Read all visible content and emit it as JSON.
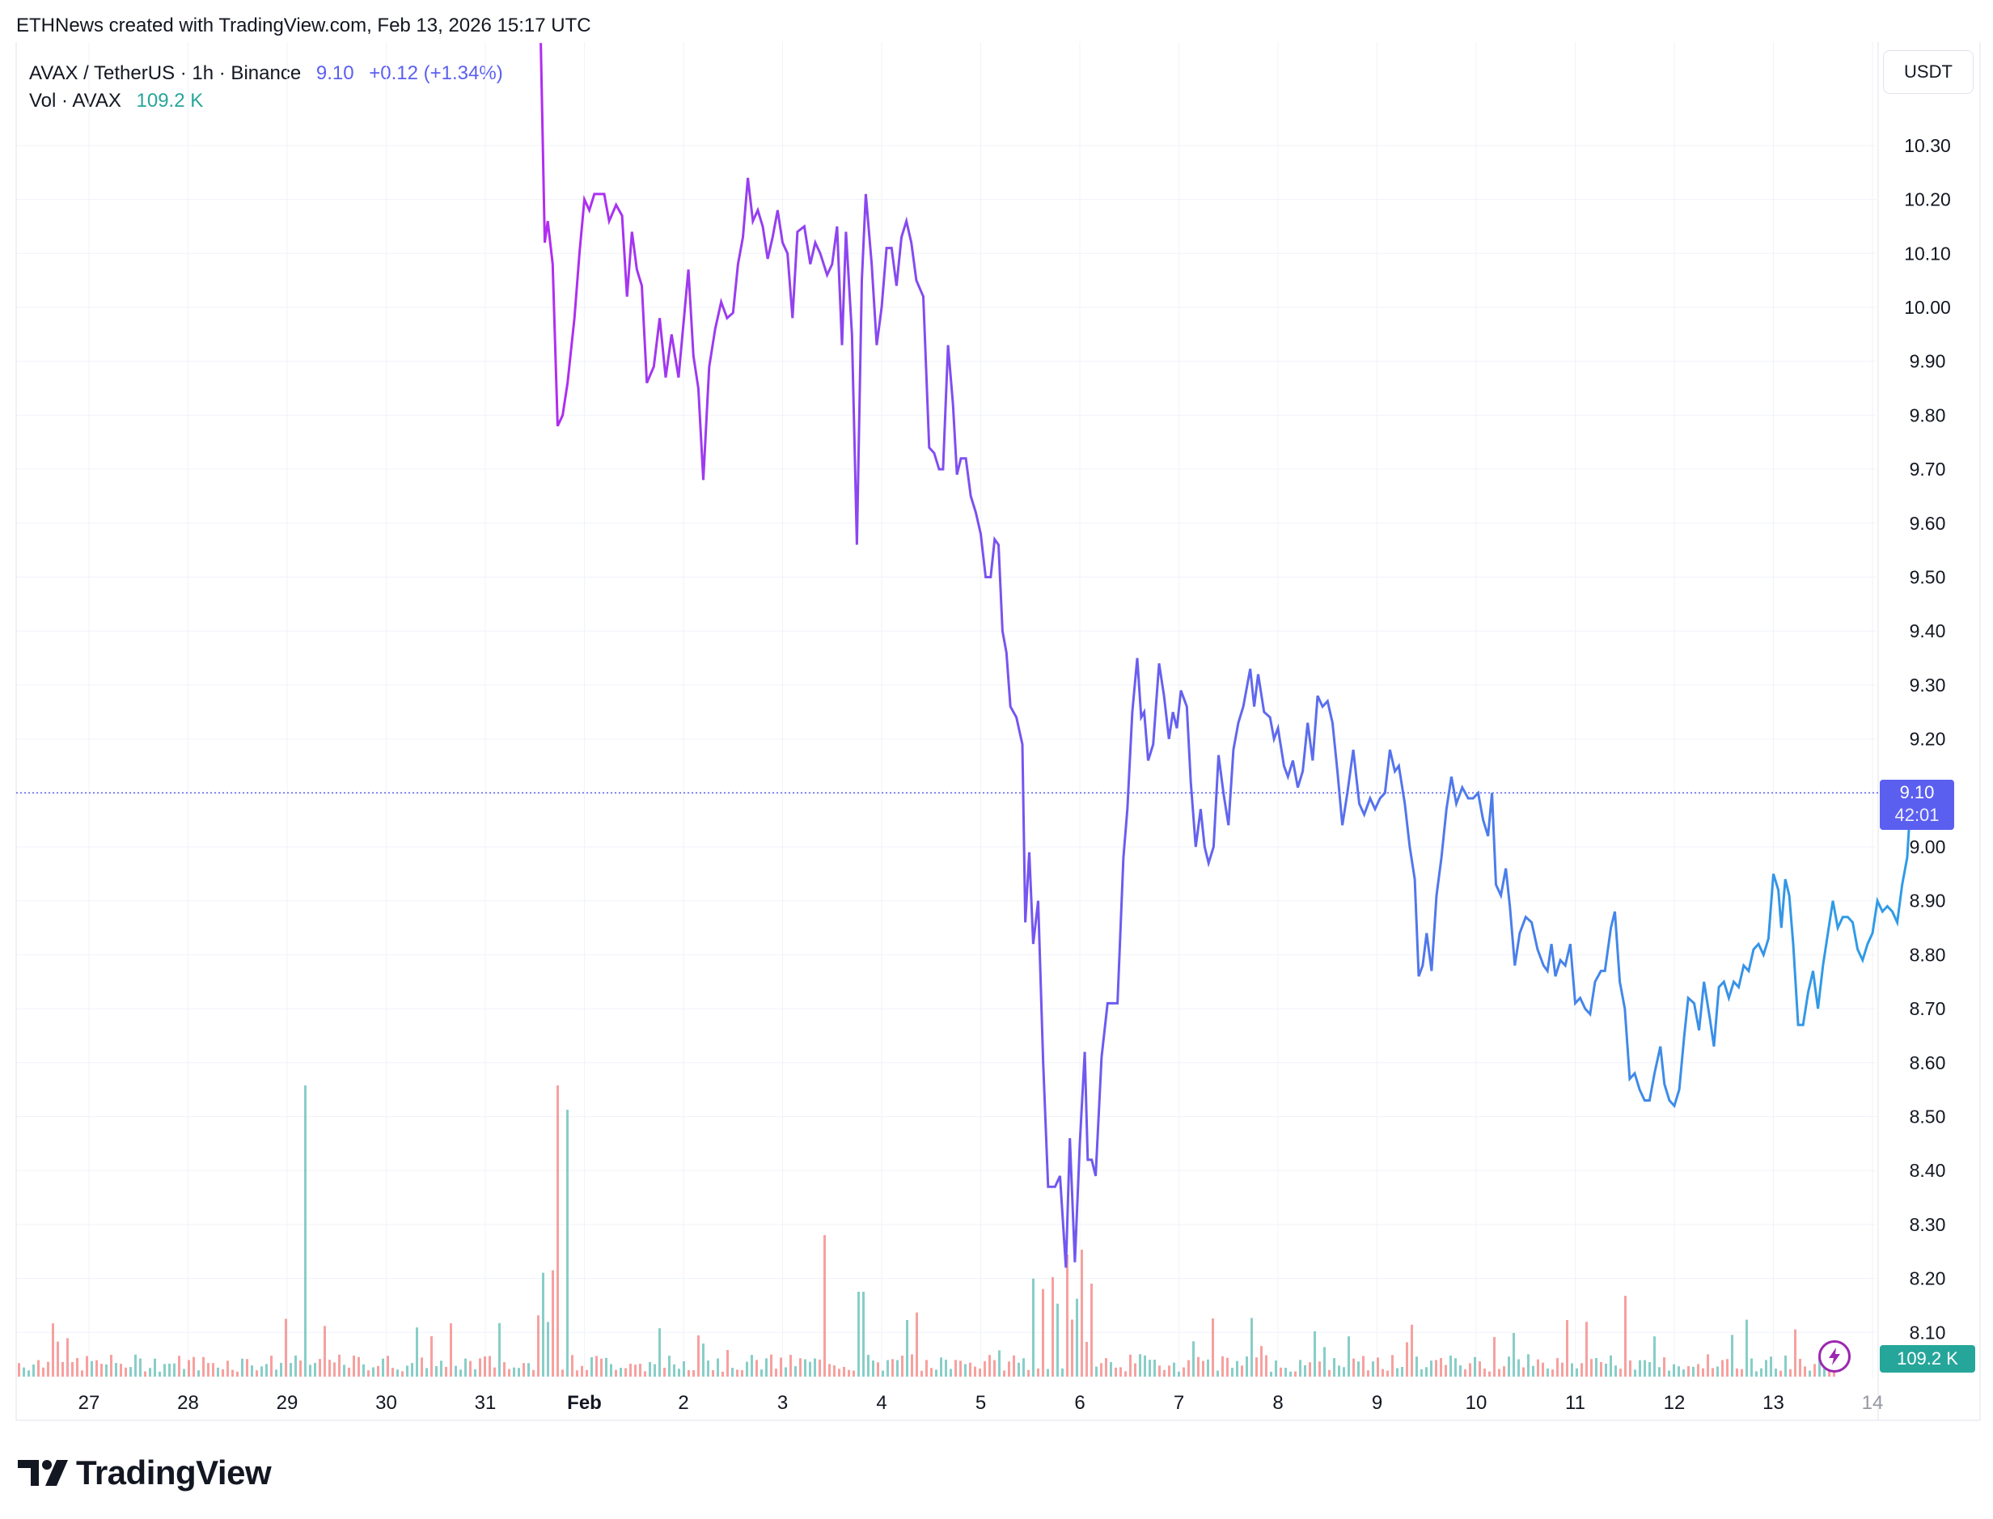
{
  "header": {
    "credit": "ETHNews created with TradingView.com, Feb 13, 2026 15:17 UTC"
  },
  "legend": {
    "symbol": "AVAX / TetherUS · 1h · Binance",
    "last": "9.10",
    "change": "+0.12 (+1.34%)",
    "volume_label": "Vol · AVAX",
    "volume_value": "109.2 K"
  },
  "currency_button": "USDT",
  "price_tag": {
    "price": "9.10",
    "countdown": "42:01"
  },
  "volume_tag": "109.2 K",
  "brand": {
    "name": "TradingView",
    "logo_icon": "tradingview-logo-icon"
  },
  "colors": {
    "line_start": "#b22cf0",
    "line_mid": "#6b5cf0",
    "line_end": "#2f9be6",
    "last_price": "#5b5ff0",
    "volume_up": "#26a69a",
    "volume_down": "#ef5350",
    "grid": "#f0f3fa"
  },
  "chart_data": {
    "type": "line",
    "y_ticks": [
      "10.30",
      "10.20",
      "10.10",
      "10.00",
      "9.90",
      "9.80",
      "9.70",
      "9.60",
      "9.50",
      "9.40",
      "9.30",
      "9.20",
      "9.10",
      "9.00",
      "8.90",
      "8.80",
      "8.70",
      "8.60",
      "8.50",
      "8.40",
      "8.30",
      "8.20",
      "8.10"
    ],
    "x_ticks": [
      "27",
      "28",
      "29",
      "30",
      "31",
      "Feb",
      "2",
      "3",
      "4",
      "5",
      "6",
      "7",
      "8",
      "9",
      "10",
      "11",
      "12",
      "13",
      "14"
    ],
    "ylim": [
      8.06,
      10.49
    ],
    "grid": true,
    "series": [
      {
        "values": [
          [
            31.56,
            10.49
          ],
          [
            31.6,
            10.12
          ],
          [
            31.63,
            10.16
          ],
          [
            31.68,
            10.08
          ],
          [
            31.73,
            9.78
          ],
          [
            31.78,
            9.8
          ],
          [
            31.83,
            9.86
          ],
          [
            31.9,
            9.98
          ],
          [
            31.95,
            10.1
          ],
          [
            32.0,
            10.2
          ],
          [
            32.05,
            10.18
          ],
          [
            32.1,
            10.21
          ],
          [
            32.2,
            10.21
          ],
          [
            32.25,
            10.16
          ],
          [
            32.32,
            10.19
          ],
          [
            32.38,
            10.17
          ],
          [
            32.43,
            10.02
          ],
          [
            32.48,
            10.14
          ],
          [
            32.53,
            10.07
          ],
          [
            32.58,
            10.04
          ],
          [
            32.63,
            9.86
          ],
          [
            32.7,
            9.89
          ],
          [
            32.76,
            9.98
          ],
          [
            32.82,
            9.87
          ],
          [
            32.88,
            9.95
          ],
          [
            32.95,
            9.87
          ],
          [
            33.0,
            9.97
          ],
          [
            33.05,
            10.07
          ],
          [
            33.1,
            9.91
          ],
          [
            33.15,
            9.85
          ],
          [
            33.2,
            9.68
          ],
          [
            33.26,
            9.89
          ],
          [
            33.32,
            9.96
          ],
          [
            33.38,
            10.01
          ],
          [
            33.44,
            9.98
          ],
          [
            33.5,
            9.99
          ],
          [
            33.55,
            10.08
          ],
          [
            33.6,
            10.13
          ],
          [
            33.65,
            10.24
          ],
          [
            33.7,
            10.16
          ],
          [
            33.75,
            10.18
          ],
          [
            33.8,
            10.15
          ],
          [
            33.85,
            10.09
          ],
          [
            33.9,
            10.13
          ],
          [
            33.95,
            10.18
          ],
          [
            34.0,
            10.12
          ],
          [
            34.05,
            10.1
          ],
          [
            34.1,
            9.98
          ],
          [
            34.15,
            10.14
          ],
          [
            34.22,
            10.15
          ],
          [
            34.28,
            10.08
          ],
          [
            34.33,
            10.12
          ],
          [
            34.38,
            10.1
          ],
          [
            34.45,
            10.06
          ],
          [
            34.5,
            10.08
          ],
          [
            34.55,
            10.15
          ],
          [
            34.6,
            9.93
          ],
          [
            34.64,
            10.14
          ],
          [
            34.7,
            9.95
          ],
          [
            34.75,
            9.56
          ],
          [
            34.8,
            10.05
          ],
          [
            34.84,
            10.21
          ],
          [
            34.9,
            10.08
          ],
          [
            34.95,
            9.93
          ],
          [
            35.0,
            10.0
          ],
          [
            35.05,
            10.11
          ],
          [
            35.1,
            10.11
          ],
          [
            35.15,
            10.04
          ],
          [
            35.2,
            10.13
          ],
          [
            35.25,
            10.16
          ],
          [
            35.3,
            10.12
          ],
          [
            35.35,
            10.05
          ],
          [
            35.42,
            10.02
          ],
          [
            35.48,
            9.74
          ],
          [
            35.53,
            9.73
          ],
          [
            35.58,
            9.7
          ],
          [
            35.62,
            9.7
          ],
          [
            35.67,
            9.93
          ],
          [
            35.72,
            9.82
          ],
          [
            35.76,
            9.69
          ],
          [
            35.8,
            9.72
          ],
          [
            35.85,
            9.72
          ],
          [
            35.9,
            9.65
          ],
          [
            35.95,
            9.62
          ],
          [
            36.0,
            9.58
          ],
          [
            36.05,
            9.5
          ],
          [
            36.1,
            9.5
          ],
          [
            36.14,
            9.57
          ],
          [
            36.18,
            9.56
          ],
          [
            36.22,
            9.4
          ],
          [
            36.26,
            9.36
          ],
          [
            36.3,
            9.26
          ],
          [
            36.36,
            9.24
          ],
          [
            36.42,
            9.19
          ],
          [
            36.45,
            8.86
          ],
          [
            36.49,
            8.99
          ],
          [
            36.53,
            8.82
          ],
          [
            36.58,
            8.9
          ],
          [
            36.63,
            8.6
          ],
          [
            36.68,
            8.37
          ],
          [
            36.75,
            8.37
          ],
          [
            36.8,
            8.39
          ],
          [
            36.86,
            8.22
          ],
          [
            36.9,
            8.46
          ],
          [
            36.95,
            8.23
          ],
          [
            37.0,
            8.45
          ],
          [
            37.05,
            8.62
          ],
          [
            37.08,
            8.42
          ],
          [
            37.12,
            8.42
          ],
          [
            37.16,
            8.39
          ],
          [
            37.22,
            8.61
          ],
          [
            37.28,
            8.71
          ],
          [
            37.32,
            8.71
          ],
          [
            37.38,
            8.71
          ],
          [
            37.44,
            8.98
          ],
          [
            37.48,
            9.07
          ],
          [
            37.53,
            9.25
          ],
          [
            37.58,
            9.35
          ],
          [
            37.62,
            9.24
          ],
          [
            37.65,
            9.25
          ],
          [
            37.69,
            9.16
          ],
          [
            37.74,
            9.19
          ],
          [
            37.8,
            9.34
          ],
          [
            37.85,
            9.28
          ],
          [
            37.9,
            9.2
          ],
          [
            37.94,
            9.25
          ],
          [
            37.98,
            9.22
          ],
          [
            38.02,
            9.29
          ],
          [
            38.08,
            9.26
          ],
          [
            38.12,
            9.12
          ],
          [
            38.17,
            9.0
          ],
          [
            38.22,
            9.07
          ],
          [
            38.26,
            9.0
          ],
          [
            38.3,
            8.97
          ],
          [
            38.35,
            9.0
          ],
          [
            38.4,
            9.17
          ],
          [
            38.45,
            9.1
          ],
          [
            38.5,
            9.04
          ],
          [
            38.55,
            9.18
          ],
          [
            38.6,
            9.23
          ],
          [
            38.65,
            9.26
          ],
          [
            38.72,
            9.33
          ],
          [
            38.76,
            9.26
          ],
          [
            38.8,
            9.32
          ],
          [
            38.86,
            9.25
          ],
          [
            38.92,
            9.24
          ],
          [
            38.96,
            9.2
          ],
          [
            39.0,
            9.22
          ],
          [
            39.06,
            9.15
          ],
          [
            39.1,
            9.13
          ],
          [
            39.15,
            9.16
          ],
          [
            39.2,
            9.11
          ],
          [
            39.25,
            9.14
          ],
          [
            39.3,
            9.23
          ],
          [
            39.35,
            9.16
          ],
          [
            39.4,
            9.28
          ],
          [
            39.45,
            9.26
          ],
          [
            39.5,
            9.27
          ],
          [
            39.55,
            9.23
          ],
          [
            39.6,
            9.14
          ],
          [
            39.65,
            9.04
          ],
          [
            39.7,
            9.1
          ],
          [
            39.76,
            9.18
          ],
          [
            39.82,
            9.08
          ],
          [
            39.87,
            9.06
          ],
          [
            39.93,
            9.09
          ],
          [
            39.98,
            9.07
          ],
          [
            40.03,
            9.09
          ],
          [
            40.08,
            9.1
          ],
          [
            40.13,
            9.18
          ],
          [
            40.18,
            9.14
          ],
          [
            40.22,
            9.15
          ],
          [
            40.28,
            9.08
          ],
          [
            40.33,
            9.0
          ],
          [
            40.38,
            8.94
          ],
          [
            40.42,
            8.76
          ],
          [
            40.46,
            8.78
          ],
          [
            40.5,
            8.84
          ],
          [
            40.55,
            8.77
          ],
          [
            40.6,
            8.91
          ],
          [
            40.65,
            8.98
          ],
          [
            40.7,
            9.07
          ],
          [
            40.75,
            9.13
          ],
          [
            40.8,
            9.08
          ],
          [
            40.86,
            9.11
          ],
          [
            40.92,
            9.09
          ],
          [
            40.97,
            9.09
          ],
          [
            41.02,
            9.1
          ],
          [
            41.07,
            9.05
          ],
          [
            41.12,
            9.02
          ],
          [
            41.16,
            9.1
          ],
          [
            41.2,
            8.93
          ],
          [
            41.25,
            8.91
          ],
          [
            41.3,
            8.96
          ],
          [
            41.34,
            8.89
          ],
          [
            41.39,
            8.78
          ],
          [
            41.44,
            8.84
          ],
          [
            41.5,
            8.87
          ],
          [
            41.56,
            8.86
          ],
          [
            41.62,
            8.81
          ],
          [
            41.68,
            8.78
          ],
          [
            41.72,
            8.77
          ],
          [
            41.76,
            8.82
          ],
          [
            41.8,
            8.76
          ],
          [
            41.85,
            8.79
          ],
          [
            41.9,
            8.78
          ],
          [
            41.95,
            8.82
          ],
          [
            42.0,
            8.71
          ],
          [
            42.05,
            8.72
          ],
          [
            42.1,
            8.7
          ],
          [
            42.15,
            8.69
          ],
          [
            42.2,
            8.75
          ],
          [
            42.26,
            8.77
          ],
          [
            42.3,
            8.77
          ],
          [
            42.36,
            8.85
          ],
          [
            42.4,
            8.88
          ],
          [
            42.45,
            8.75
          ],
          [
            42.5,
            8.7
          ],
          [
            42.55,
            8.57
          ],
          [
            42.6,
            8.58
          ],
          [
            42.65,
            8.55
          ],
          [
            42.7,
            8.53
          ],
          [
            42.75,
            8.53
          ],
          [
            42.8,
            8.58
          ],
          [
            42.86,
            8.63
          ],
          [
            42.9,
            8.56
          ],
          [
            42.95,
            8.53
          ],
          [
            43.0,
            8.52
          ],
          [
            43.05,
            8.55
          ],
          [
            43.1,
            8.65
          ],
          [
            43.14,
            8.72
          ],
          [
            43.2,
            8.71
          ],
          [
            43.25,
            8.66
          ],
          [
            43.3,
            8.75
          ],
          [
            43.36,
            8.68
          ],
          [
            43.4,
            8.63
          ],
          [
            43.45,
            8.74
          ],
          [
            43.5,
            8.75
          ],
          [
            43.55,
            8.72
          ],
          [
            43.6,
            8.75
          ],
          [
            43.65,
            8.74
          ],
          [
            43.7,
            8.78
          ],
          [
            43.75,
            8.77
          ],
          [
            43.8,
            8.81
          ],
          [
            43.85,
            8.82
          ],
          [
            43.9,
            8.8
          ],
          [
            43.95,
            8.83
          ],
          [
            44.0,
            8.95
          ],
          [
            44.05,
            8.92
          ],
          [
            44.08,
            8.85
          ],
          [
            44.12,
            8.94
          ],
          [
            44.16,
            8.91
          ],
          [
            44.2,
            8.82
          ],
          [
            44.25,
            8.67
          ],
          [
            44.3,
            8.67
          ],
          [
            44.35,
            8.73
          ],
          [
            44.4,
            8.77
          ],
          [
            44.45,
            8.7
          ],
          [
            44.5,
            8.78
          ],
          [
            44.55,
            8.84
          ],
          [
            44.6,
            8.9
          ],
          [
            44.65,
            8.85
          ],
          [
            44.7,
            8.87
          ],
          [
            44.75,
            8.87
          ],
          [
            44.8,
            8.86
          ],
          [
            44.85,
            8.81
          ],
          [
            44.9,
            8.79
          ],
          [
            44.95,
            8.82
          ],
          [
            45.0,
            8.84
          ],
          [
            45.05,
            8.9
          ],
          [
            45.1,
            8.88
          ],
          [
            45.15,
            8.89
          ],
          [
            45.2,
            8.88
          ],
          [
            45.25,
            8.86
          ],
          [
            45.3,
            8.93
          ],
          [
            45.35,
            8.98
          ],
          [
            45.39,
            9.1
          ]
        ]
      }
    ]
  }
}
